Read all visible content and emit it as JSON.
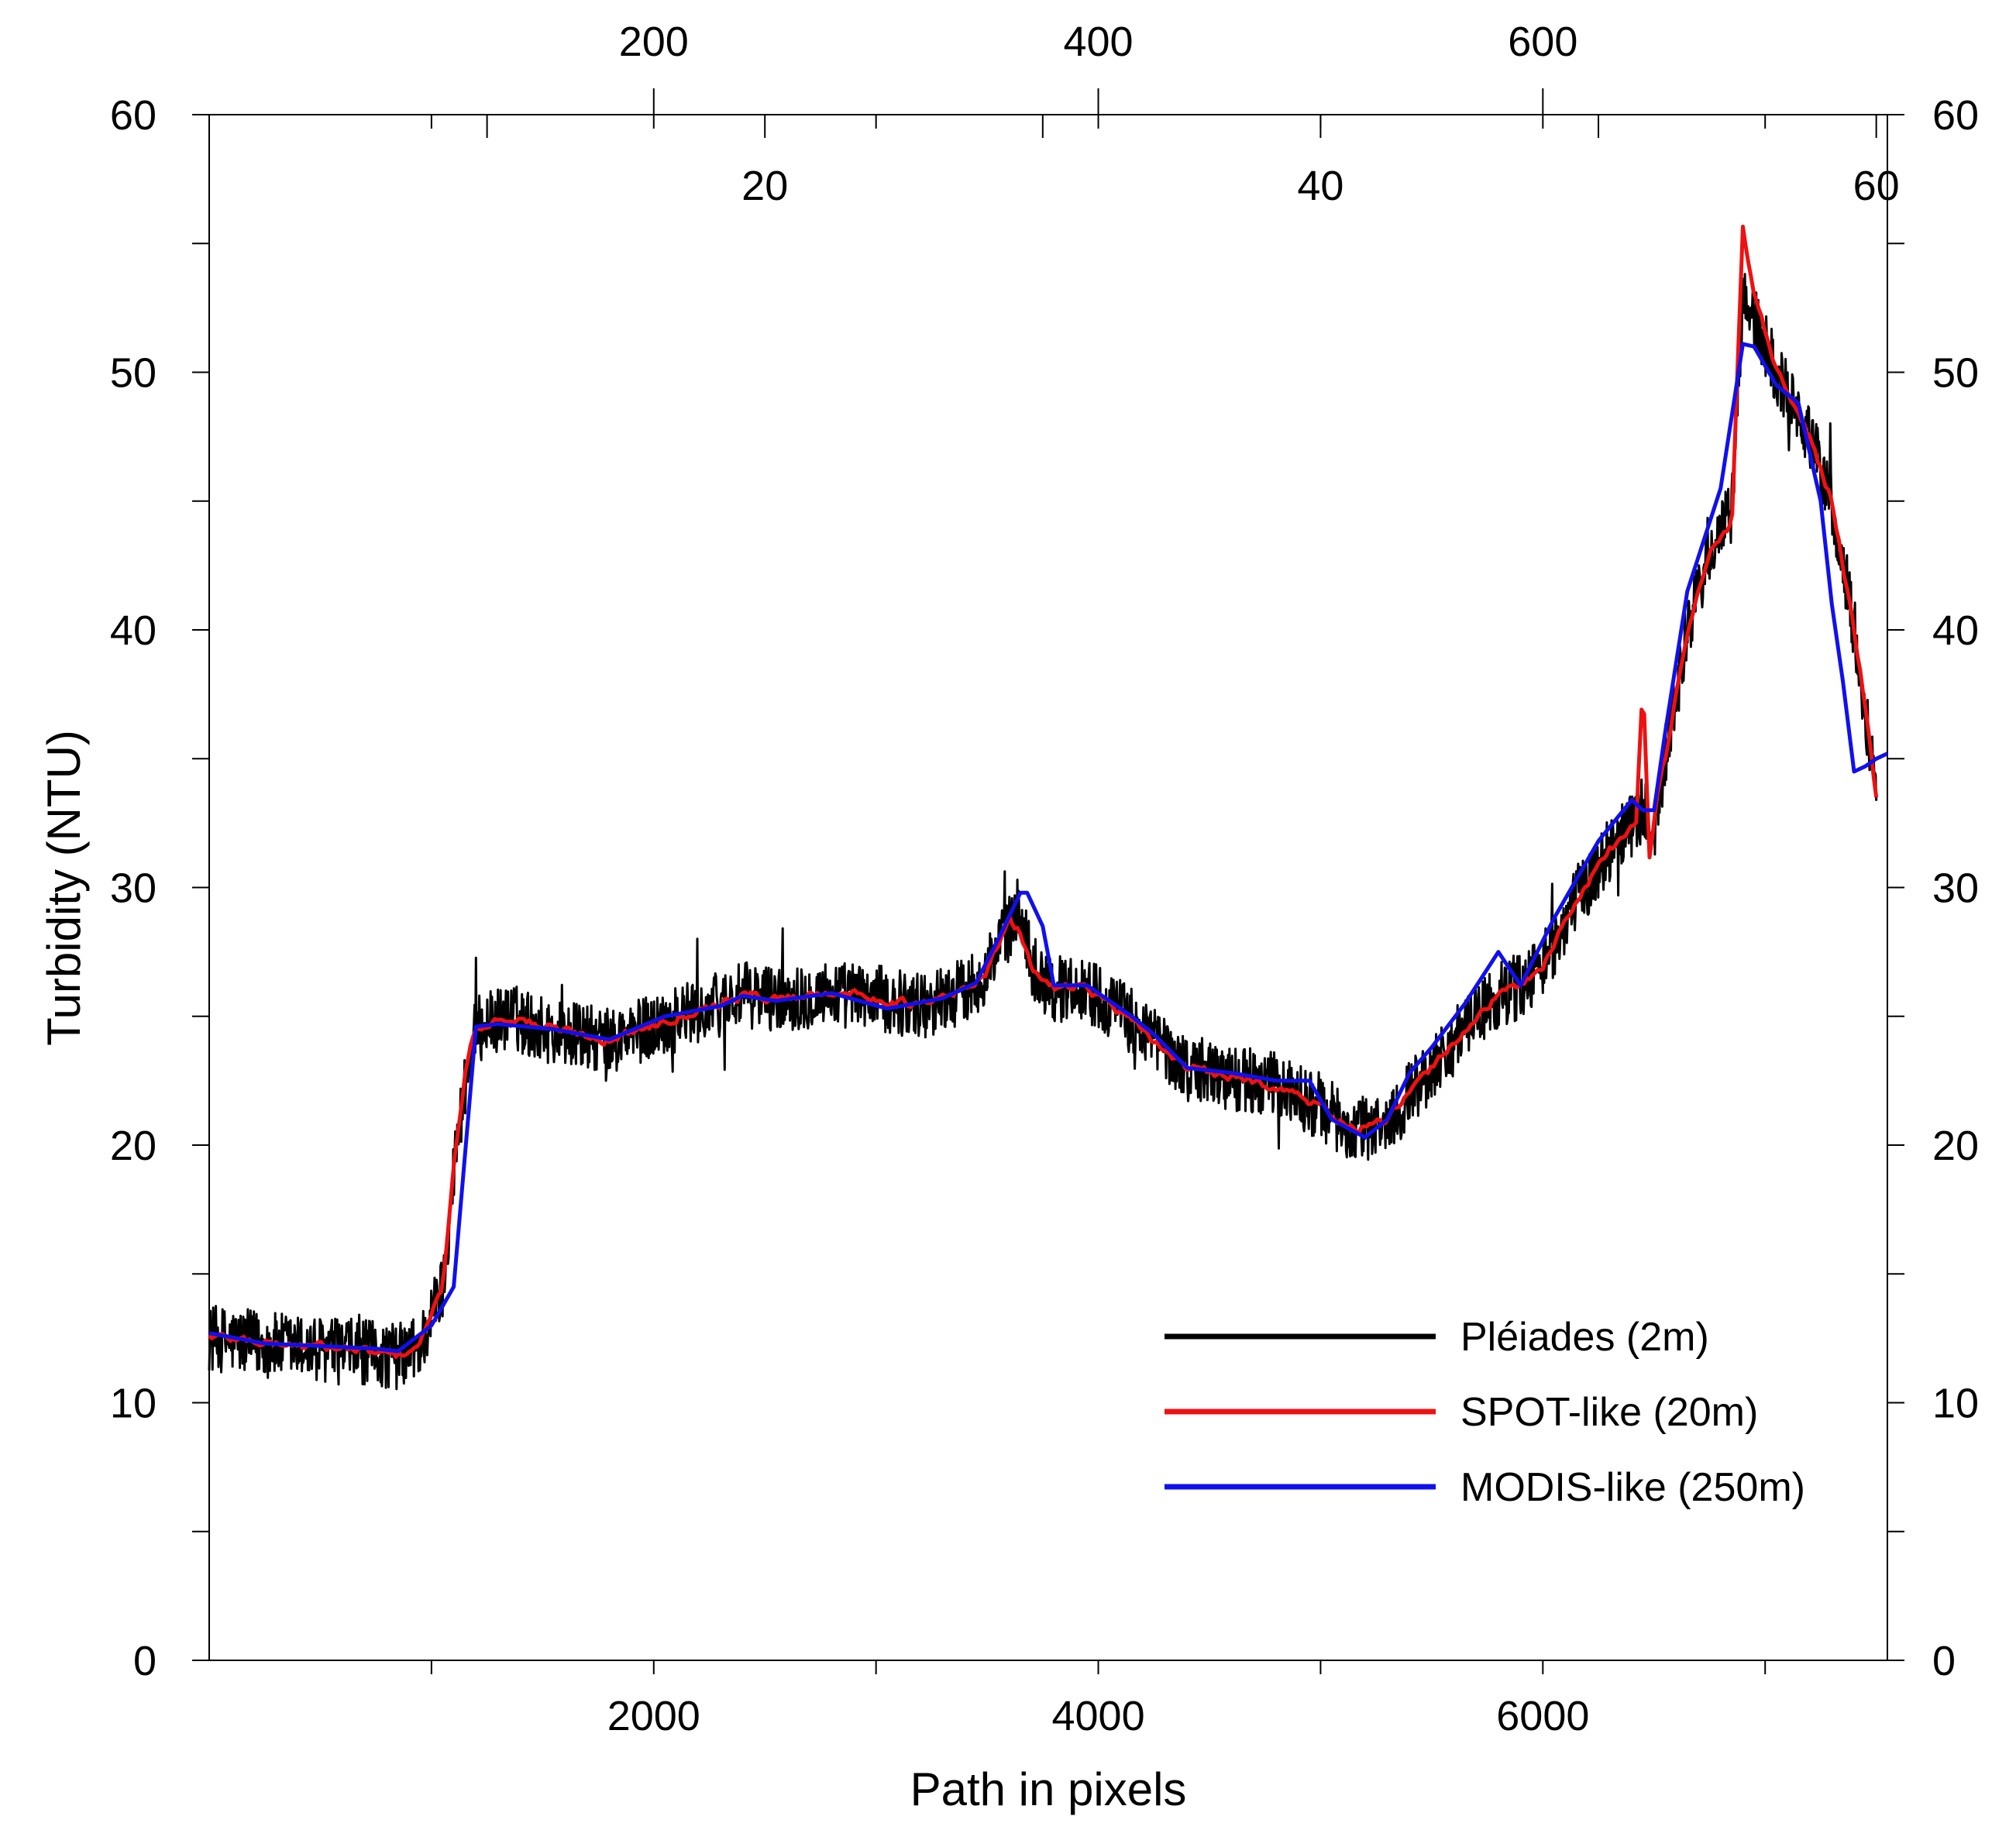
{
  "chart_data": {
    "type": "line",
    "title": "",
    "xlabel": "Path in pixels",
    "ylabel": "Turbidity (NTU)",
    "xlim": [
      0,
      7550
    ],
    "ylim": [
      0,
      60
    ],
    "grid": false,
    "legend_position": "bottom-right",
    "x_ticks": [
      2000,
      4000,
      6000
    ],
    "x_minor_ticks": [
      1000,
      2000,
      3000,
      4000,
      5000,
      6000,
      7000
    ],
    "y_ticks": [
      0,
      10,
      20,
      30,
      40,
      50,
      60
    ],
    "y_minor_ticks": [
      5,
      15,
      25,
      35,
      45,
      55
    ],
    "top_axis_outer": {
      "label": "",
      "pixel_size_m": 20,
      "ticks": [
        200,
        400,
        600
      ],
      "minor_ticks": [
        100,
        200,
        300,
        400,
        500,
        600,
        700
      ]
    },
    "top_axis_inner": {
      "label": "",
      "pixel_size_m": 250,
      "ticks": [
        20,
        40,
        60
      ],
      "minor_ticks": [
        10,
        20,
        30,
        40,
        50,
        60
      ]
    },
    "series": [
      {
        "name": "Pléiades (2m)",
        "color": "#000000",
        "noise_amplitude": 1.3,
        "x": [
          0,
          300,
          600,
          850,
          950,
          1050,
          1100,
          1150,
          1200,
          1350,
          1500,
          1800,
          2000,
          2200,
          2400,
          2600,
          2800,
          3000,
          3200,
          3400,
          3500,
          3600,
          3650,
          3700,
          3800,
          3900,
          4000,
          4200,
          4400,
          4600,
          4800,
          5000,
          5150,
          5300,
          5400,
          5500,
          5650,
          5800,
          5900,
          6000,
          6150,
          6300,
          6450,
          6500,
          6550,
          6650,
          6750,
          6850,
          6900,
          6950,
          7050,
          7200,
          7300,
          7400,
          7450,
          7500
        ],
        "y": [
          12.5,
          12.2,
          12.0,
          11.8,
          12.2,
          14.5,
          19.0,
          22.5,
          24.5,
          25.0,
          24.5,
          24.0,
          24.6,
          25.2,
          25.8,
          25.7,
          25.9,
          25.7,
          25.4,
          26.0,
          26.8,
          28.5,
          29.2,
          27.0,
          26.0,
          26.2,
          25.8,
          24.5,
          23.0,
          22.6,
          22.3,
          21.5,
          20.5,
          20.8,
          22.0,
          23.0,
          24.5,
          25.8,
          26.2,
          27.0,
          29.5,
          31.5,
          33.0,
          32.0,
          35.0,
          40.0,
          43.0,
          44.5,
          53.0,
          52.0,
          50.0,
          47.5,
          45.0,
          40.0,
          37.0,
          33.5
        ]
      },
      {
        "name": "SPOT-like (20m)",
        "color": "#ee1111",
        "noise_amplitude": 0.35,
        "x": [
          0,
          300,
          600,
          850,
          950,
          1050,
          1100,
          1150,
          1200,
          1350,
          1500,
          1800,
          2000,
          2200,
          2400,
          2600,
          2800,
          3000,
          3200,
          3400,
          3500,
          3600,
          3650,
          3700,
          3800,
          3900,
          4000,
          4200,
          4400,
          4600,
          4800,
          5000,
          5150,
          5300,
          5400,
          5500,
          5650,
          5800,
          5900,
          6000,
          6150,
          6300,
          6420,
          6450,
          6480,
          6520,
          6550,
          6650,
          6750,
          6850,
          6900,
          6950,
          7050,
          7200,
          7300,
          7400,
          7450,
          7500
        ],
        "y": [
          12.6,
          12.3,
          12.1,
          11.8,
          12.3,
          14.5,
          19.0,
          22.8,
          24.6,
          25.0,
          24.6,
          24.1,
          24.7,
          25.3,
          25.8,
          25.7,
          26.0,
          25.7,
          25.4,
          26.0,
          26.8,
          28.7,
          28.2,
          26.9,
          26.1,
          26.3,
          25.8,
          24.4,
          23.0,
          22.6,
          22.3,
          21.5,
          20.6,
          20.9,
          22.0,
          23.0,
          24.5,
          25.8,
          26.2,
          27.0,
          29.5,
          31.5,
          32.5,
          38.0,
          31.0,
          34.0,
          35.0,
          40.0,
          43.0,
          44.0,
          55.5,
          53.0,
          50.0,
          47.5,
          45.0,
          40.0,
          37.0,
          33.5
        ]
      },
      {
        "name": "MODIS-like (250m)",
        "color": "#1010ee",
        "noise_amplitude": 0,
        "x": [
          0,
          250,
          500,
          750,
          850,
          1000,
          1100,
          1200,
          1300,
          1550,
          1800,
          2050,
          2300,
          2400,
          2550,
          2800,
          3050,
          3300,
          3450,
          3550,
          3650,
          3680,
          3750,
          3800,
          3950,
          4150,
          4250,
          4400,
          4600,
          4800,
          4950,
          5050,
          5200,
          5300,
          5400,
          5500,
          5650,
          5800,
          5900,
          6050,
          6250,
          6400,
          6450,
          6500,
          6550,
          6650,
          6800,
          6900,
          6950,
          7050,
          7150,
          7250,
          7300,
          7350,
          7400,
          7450,
          7500,
          7550
        ],
        "y": [
          12.7,
          12.3,
          12.2,
          12.1,
          12.0,
          13.0,
          14.5,
          24.6,
          24.7,
          24.5,
          24.1,
          25.0,
          25.4,
          25.8,
          25.6,
          25.9,
          25.3,
          25.7,
          26.3,
          28.0,
          29.8,
          29.8,
          28.5,
          26.2,
          26.2,
          25.0,
          24.3,
          23.0,
          22.8,
          22.5,
          22.5,
          21.0,
          20.3,
          21.0,
          22.8,
          23.8,
          25.5,
          27.5,
          26.2,
          28.8,
          31.8,
          33.4,
          33.0,
          33.0,
          36.0,
          41.5,
          45.5,
          51.1,
          51.0,
          49.5,
          48.8,
          45.0,
          41.0,
          38.0,
          34.5,
          34.7,
          35.0,
          35.2
        ]
      }
    ]
  }
}
